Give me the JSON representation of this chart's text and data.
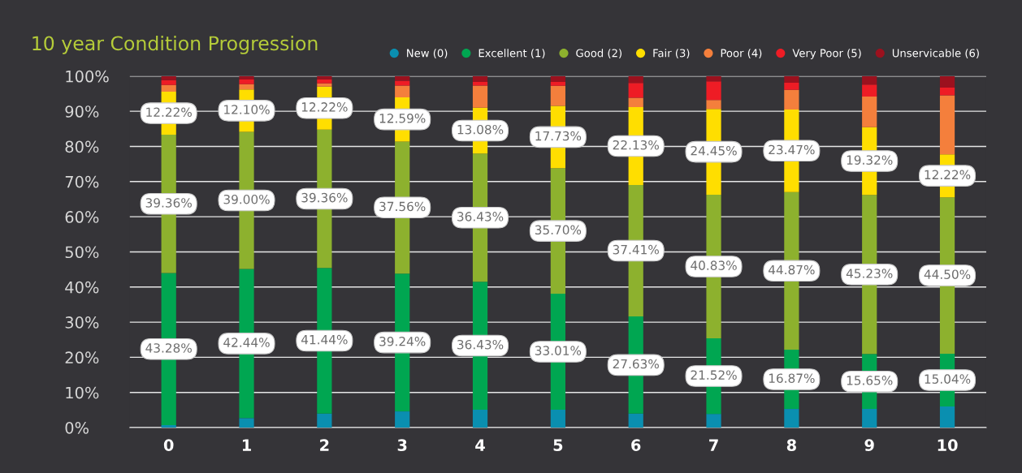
{
  "chart_data": {
    "type": "bar",
    "stacked": true,
    "title": "10 year Condition Progression",
    "categories": [
      "0",
      "1",
      "2",
      "3",
      "4",
      "5",
      "6",
      "7",
      "8",
      "9",
      "10"
    ],
    "ylim": [
      0,
      100
    ],
    "yticks": [
      {
        "value": 0,
        "label": "0%"
      },
      {
        "value": 10,
        "label": "10%"
      },
      {
        "value": 20,
        "label": "20%"
      },
      {
        "value": 30,
        "label": "30%"
      },
      {
        "value": 40,
        "label": "40%"
      },
      {
        "value": 50,
        "label": "50%"
      },
      {
        "value": 60,
        "label": "60%"
      },
      {
        "value": 70,
        "label": "70%"
      },
      {
        "value": 80,
        "label": "80%"
      },
      {
        "value": 90,
        "label": "90%"
      },
      {
        "value": 100,
        "label": "100%"
      }
    ],
    "grid": "y",
    "legend": "top right",
    "series": [
      {
        "name": "New (0)",
        "color": "#0a8fb0",
        "values": [
          0.7,
          2.7,
          4.0,
          4.6,
          5.1,
          5.1,
          4.0,
          3.9,
          5.3,
          5.3,
          6.0
        ]
      },
      {
        "name": "Excellent (1)",
        "color": "#00a651",
        "values": [
          43.28,
          42.44,
          41.44,
          39.24,
          36.43,
          33.01,
          27.63,
          21.52,
          16.87,
          15.65,
          15.04
        ],
        "value_labels": [
          "43.28%",
          "42.44%",
          "41.44%",
          "39.24%",
          "36.43%",
          "33.01%",
          "27.63%",
          "21.52%",
          "16.87%",
          "15.65%",
          "15.04%"
        ]
      },
      {
        "name": "Good (2)",
        "color": "#8db12e",
        "values": [
          39.36,
          39.0,
          39.36,
          37.56,
          36.43,
          35.7,
          37.41,
          40.83,
          44.87,
          45.23,
          44.5
        ],
        "value_labels": [
          "39.36%",
          "39.00%",
          "39.36%",
          "37.56%",
          "36.43%",
          "35.70%",
          "37.41%",
          "40.83%",
          "44.87%",
          "45.23%",
          "44.50%"
        ]
      },
      {
        "name": "Fair (3)",
        "color": "#ffde00",
        "values": [
          12.22,
          12.1,
          12.22,
          12.59,
          13.08,
          17.73,
          22.13,
          24.45,
          23.47,
          19.32,
          12.22
        ],
        "value_labels": [
          "12.22%",
          "12.10%",
          "12.22%",
          "12.59%",
          "13.08%",
          "17.73%",
          "22.13%",
          "24.45%",
          "23.47%",
          "19.32%",
          "12.22%"
        ]
      },
      {
        "name": "Poor (4)",
        "color": "#f47f3c",
        "values": [
          1.9,
          1.5,
          0.9,
          3.3,
          6.3,
          5.7,
          2.7,
          2.5,
          5.6,
          8.7,
          16.8
        ]
      },
      {
        "name": "Very Poor (5)",
        "color": "#ee1c25",
        "values": [
          1.4,
          1.3,
          1.2,
          1.4,
          1.0,
          1.1,
          4.2,
          5.3,
          2.0,
          3.4,
          2.2
        ]
      },
      {
        "name": "Unservicable (6)",
        "color": "#9b111e",
        "values": [
          1.1,
          1.0,
          0.9,
          1.3,
          1.7,
          1.7,
          1.9,
          1.5,
          1.9,
          2.4,
          3.2
        ]
      }
    ]
  }
}
